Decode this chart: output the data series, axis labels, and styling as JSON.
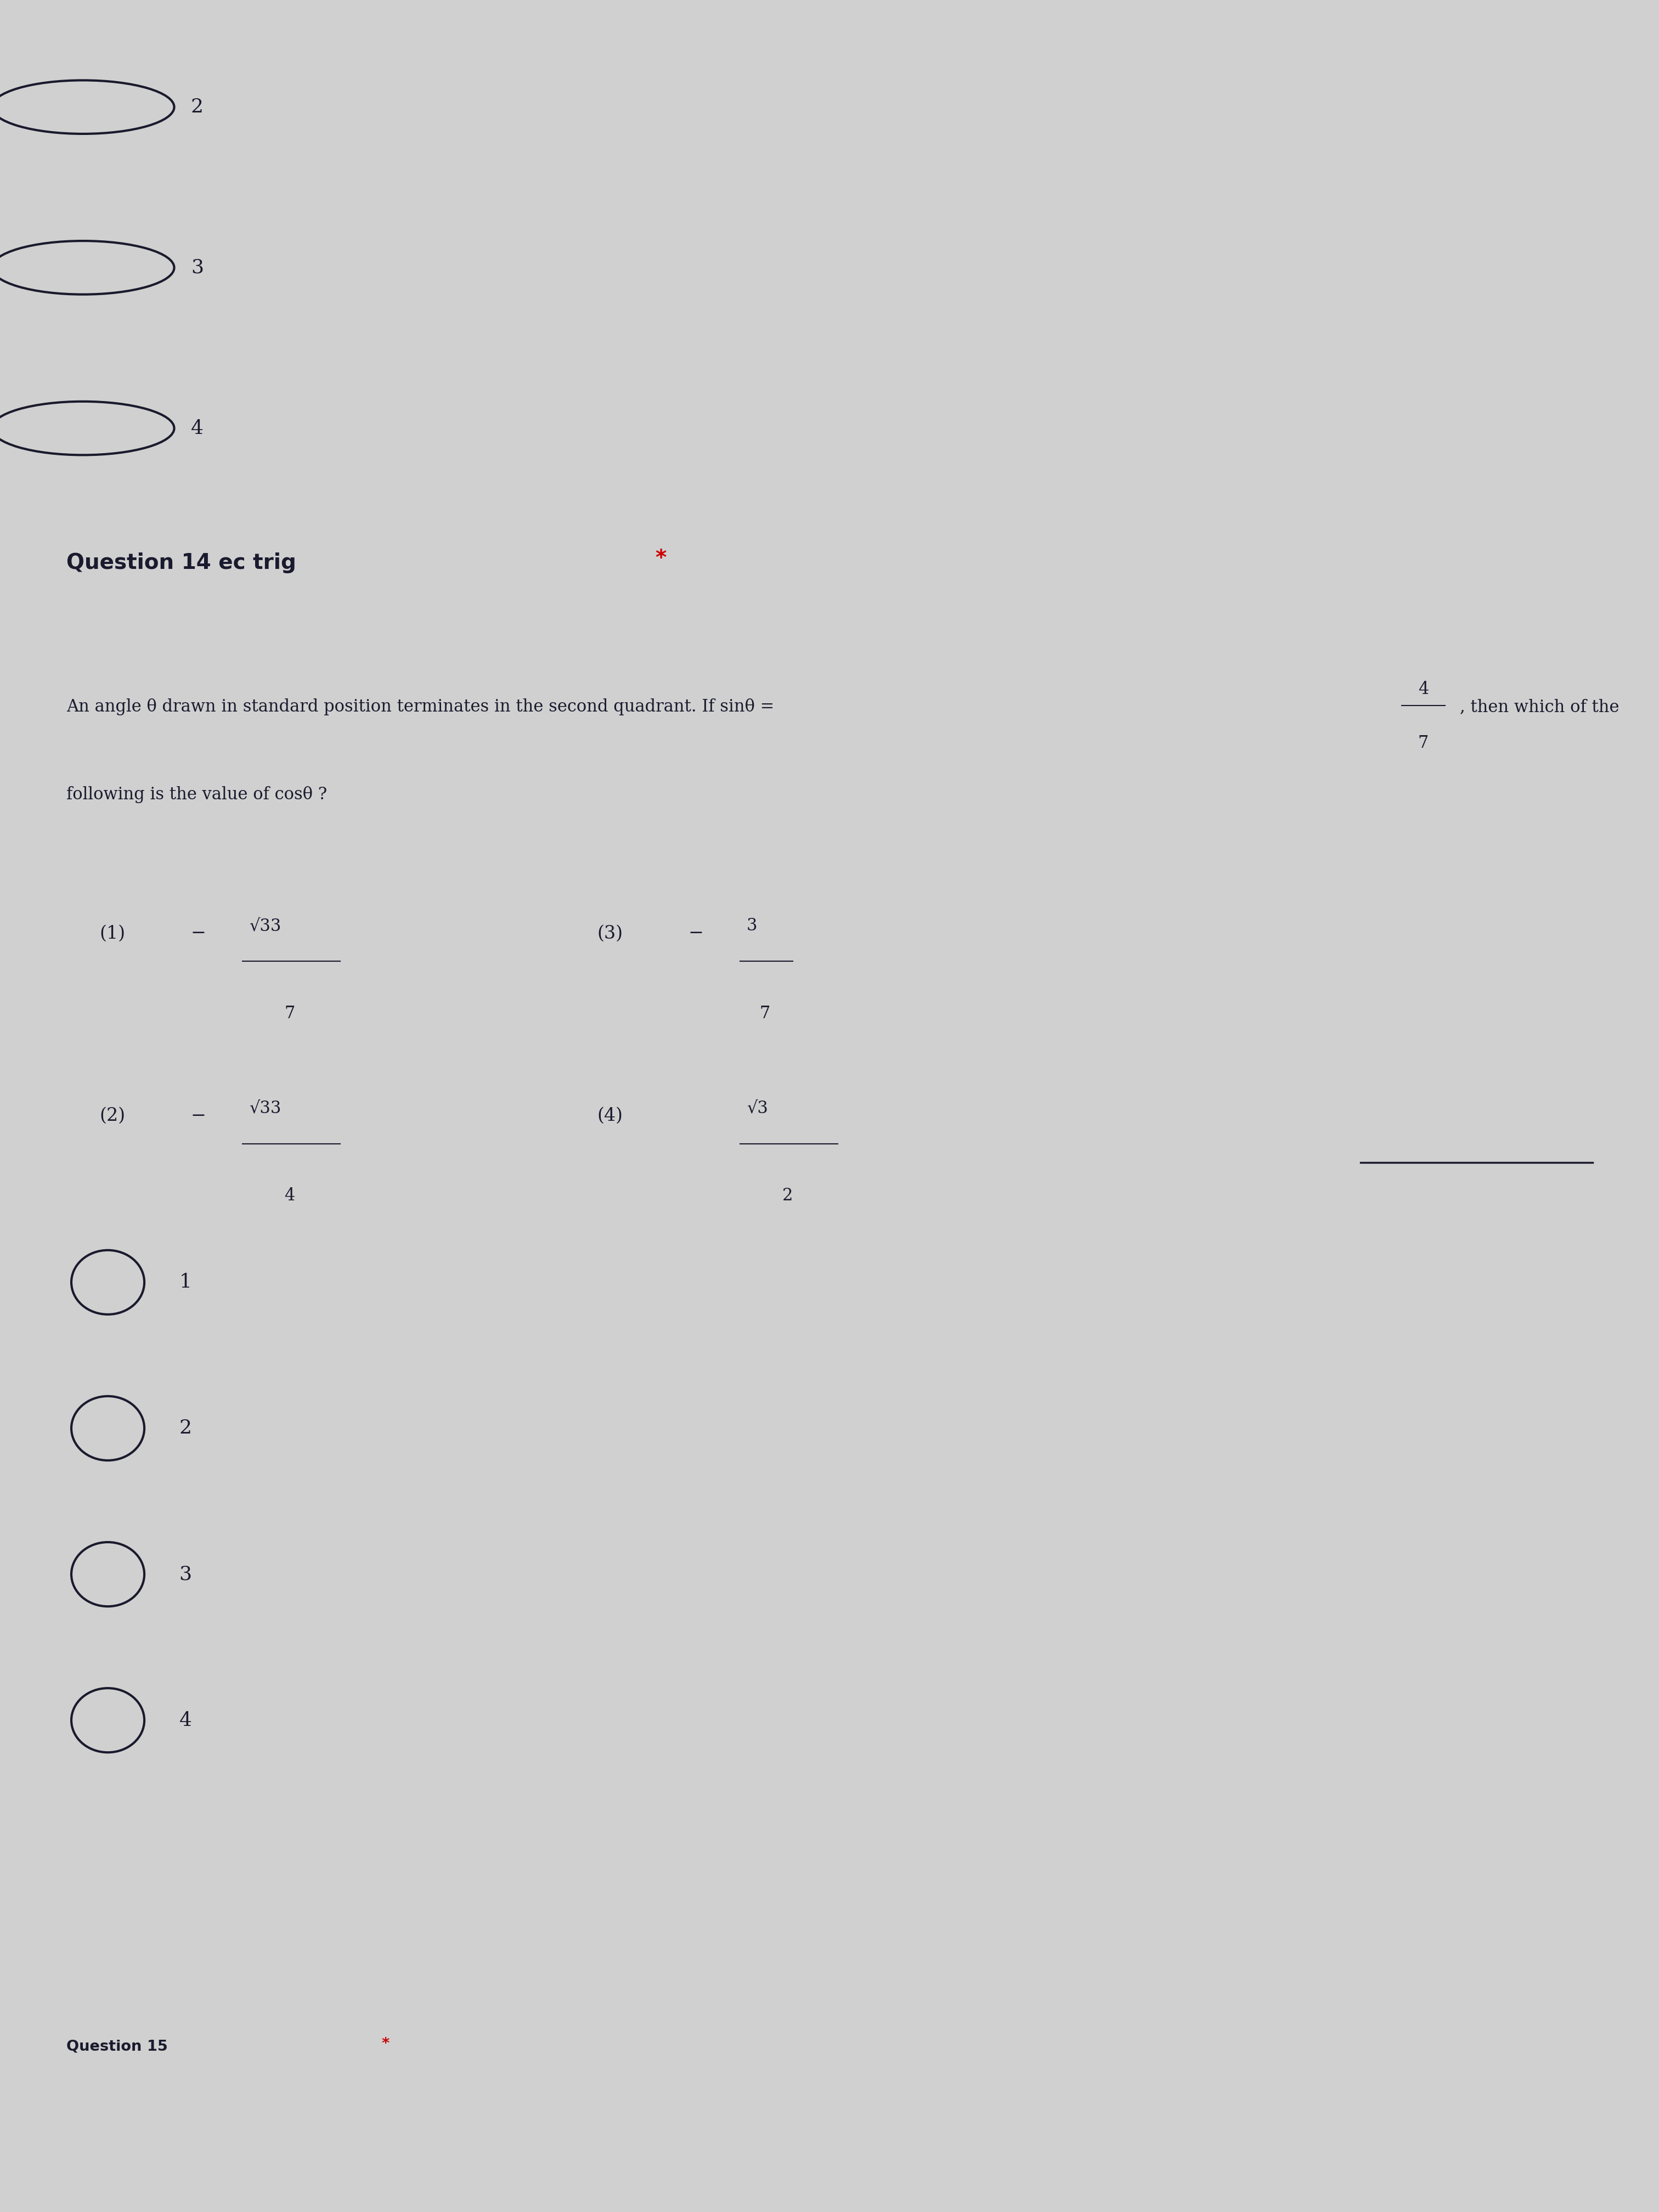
{
  "bg_color_top": "#d0d0d0",
  "bg_color_section1": "#e5e5e5",
  "bg_color_section2": "#dde0d8",
  "bg_color_bottom": "#c0c0c0",
  "asterisk_color": "#cc0000",
  "font_color": "#1a1a2e",
  "label_fontsize": 28,
  "body_fontsize": 22,
  "option_fontsize": 24,
  "radio_fontsize": 26,
  "q_label": "Question 14 ec trig ",
  "q_asterisk": "*",
  "body_line1": "An angle θ drawn in standard position terminates in the second quadrant. If sinθ =",
  "frac_num": "4",
  "frac_den": "7",
  "body_line1_cont": ", then which of the",
  "body_line2": "following is the value of cosθ ?",
  "radio_top": [
    "2",
    "3",
    "4"
  ],
  "radio_main": [
    "1",
    "2",
    "3",
    "4"
  ],
  "bottom_label": "Question 15"
}
